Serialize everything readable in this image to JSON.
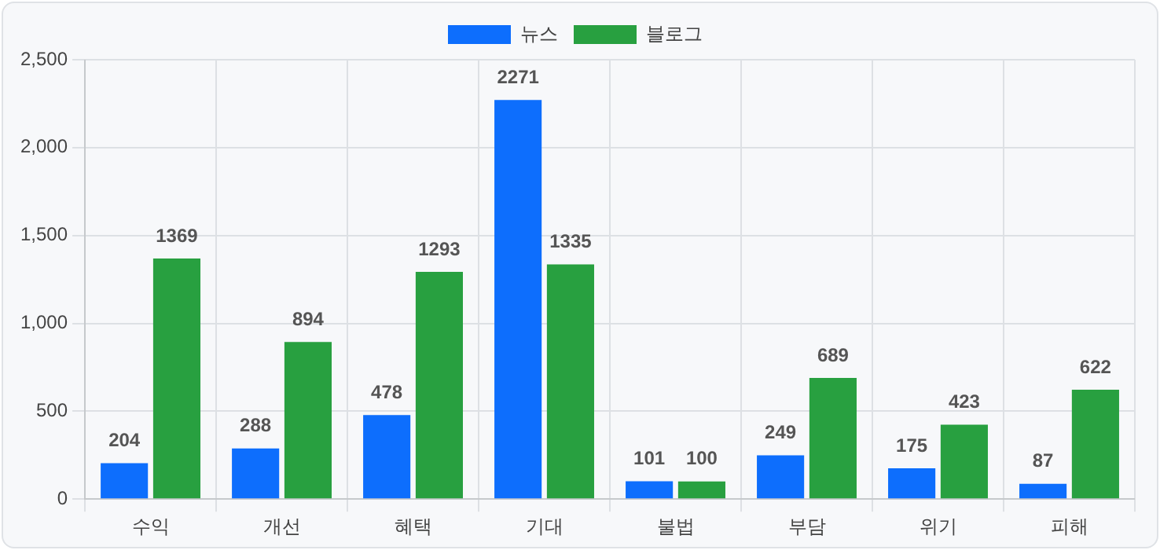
{
  "chart_data": {
    "type": "bar",
    "categories": [
      "수익",
      "개선",
      "혜택",
      "기대",
      "불법",
      "부담",
      "위기",
      "피해"
    ],
    "series": [
      {
        "name": "뉴스",
        "color": "#0d6efd",
        "values": [
          204,
          288,
          478,
          2271,
          101,
          249,
          175,
          87
        ]
      },
      {
        "name": "블로그",
        "color": "#28a040",
        "values": [
          1369,
          894,
          1293,
          1335,
          100,
          689,
          423,
          622
        ]
      }
    ],
    "ylim": [
      0,
      2500
    ],
    "yticks": [
      0,
      {
        "value": 500,
        "label": "500"
      },
      {
        "value": 1000,
        "label": "1,000"
      },
      {
        "value": 1500,
        "label": "1,500"
      },
      {
        "value": 2000,
        "label": "2,000"
      },
      {
        "value": 2500,
        "label": "2,500"
      }
    ],
    "grid": true,
    "legend": "top",
    "data_labels": true
  }
}
